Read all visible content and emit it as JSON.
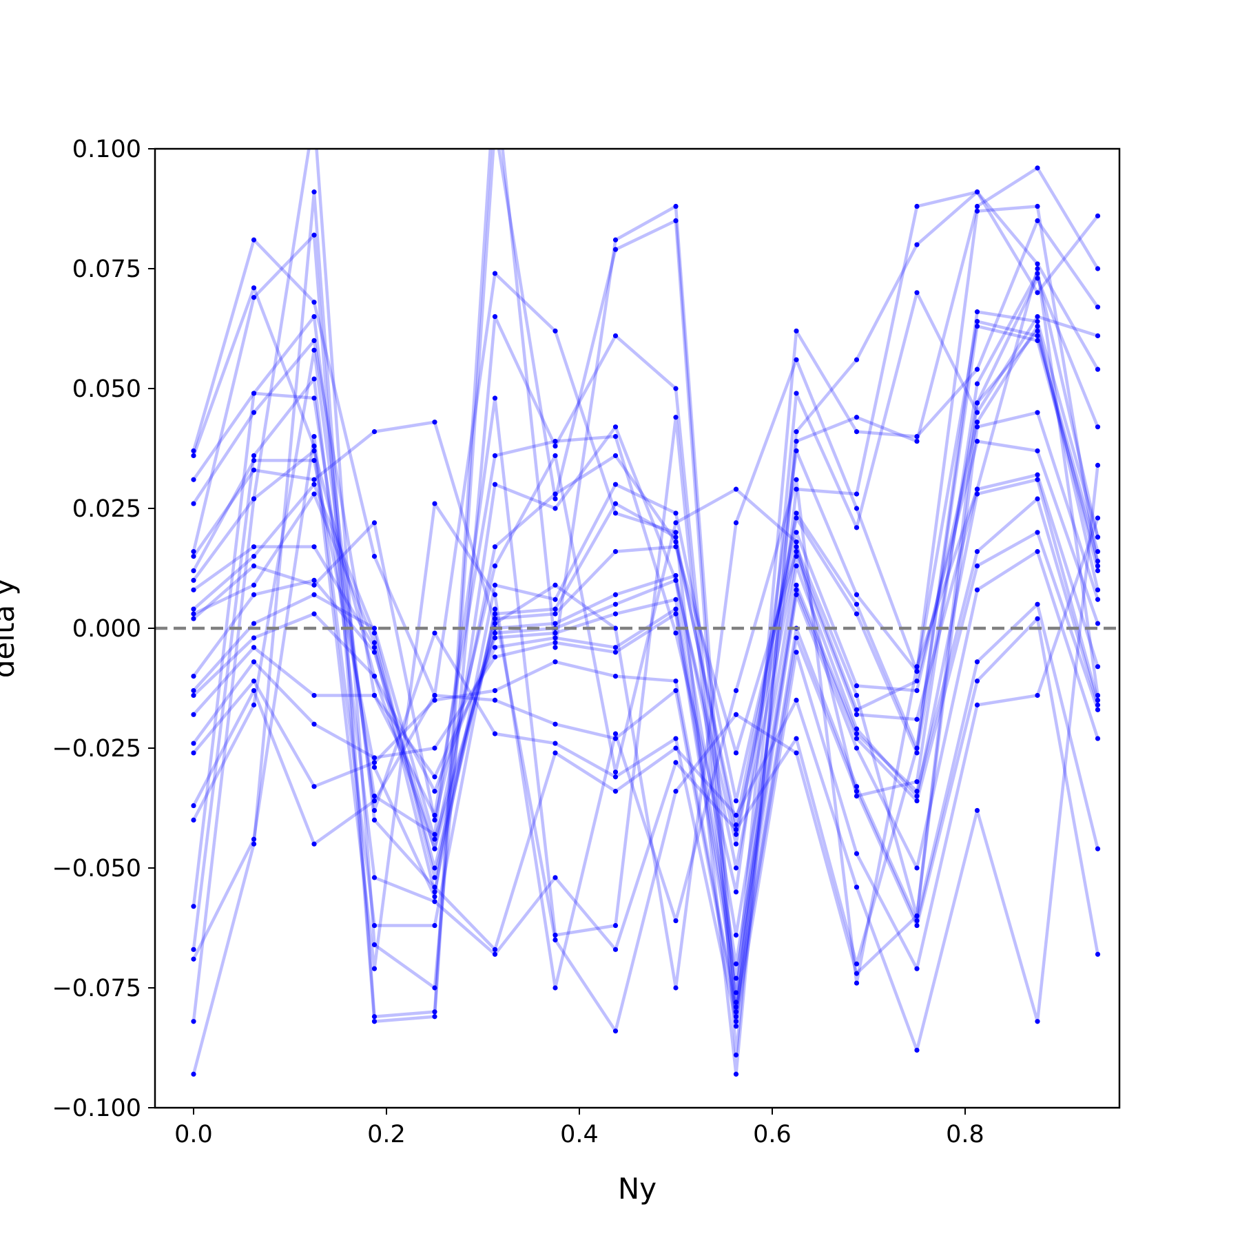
{
  "chart_data": {
    "type": "line",
    "title": "",
    "xlabel": "Ny",
    "ylabel": "delta y",
    "xlim": [
      -0.04,
      0.96
    ],
    "ylim": [
      -0.1,
      0.1
    ],
    "x_ticks": [
      "0.0",
      "0.2",
      "0.4",
      "0.6",
      "0.8"
    ],
    "y_ticks": [
      "0.100",
      "0.075",
      "0.050",
      "0.025",
      "0.000",
      "−0.025",
      "−0.050",
      "−0.075",
      "−0.100"
    ],
    "grid": false,
    "reference_line": {
      "y": 0.0,
      "style": "dashed",
      "color": "#808080"
    },
    "colors": {
      "line": "#0000ff",
      "marker": "#0000ff",
      "line_alpha": 0.25
    },
    "x": [
      0.0,
      0.0625,
      0.125,
      0.1875,
      0.25,
      0.3125,
      0.375,
      0.4375,
      0.5,
      0.5625,
      0.625,
      0.6875,
      0.75,
      0.8125,
      0.875,
      0.9375
    ],
    "series": [
      {
        "values": [
          0.037,
          0.081,
          0.068,
          0.015,
          -0.014,
          0.074,
          0.062,
          0.024,
          0.02,
          -0.093,
          0.041,
          0.056,
          0.08,
          0.091,
          0.076,
          0.054
        ]
      },
      {
        "values": [
          -0.093,
          -0.045,
          0.091,
          -0.081,
          -0.08,
          0.115,
          -0.004,
          0.081,
          0.088,
          -0.081,
          0.029,
          0.028,
          0.088,
          0.091,
          0.07,
          0.086
        ]
      },
      {
        "values": [
          0.016,
          0.069,
          0.082,
          -0.082,
          -0.081,
          0.105,
          0.027,
          0.079,
          0.085,
          -0.089,
          0.039,
          0.044,
          0.039,
          0.088,
          0.096,
          0.075
        ]
      },
      {
        "values": [
          -0.082,
          0.027,
          0.107,
          -0.066,
          -0.075,
          0.065,
          0.038,
          0.061,
          0.05,
          -0.078,
          0.062,
          0.041,
          0.04,
          0.054,
          0.085,
          0.067
        ]
      },
      {
        "values": [
          0.031,
          0.049,
          0.048,
          -0.035,
          -0.043,
          0.048,
          -0.064,
          -0.062,
          0.044,
          -0.083,
          0.049,
          0.021,
          0.07,
          0.045,
          0.065,
          0.061
        ]
      },
      {
        "values": [
          0.026,
          0.045,
          0.06,
          -0.014,
          -0.039,
          0.036,
          0.039,
          0.04,
          -0.001,
          -0.055,
          0.037,
          0.007,
          -0.009,
          0.064,
          0.061,
          0.016
        ]
      },
      {
        "values": [
          0.012,
          0.035,
          0.035,
          -0.029,
          -0.056,
          0.03,
          0.025,
          0.042,
          0.01,
          -0.045,
          0.024,
          0.005,
          -0.025,
          0.063,
          0.06,
          0.014
        ]
      },
      {
        "values": [
          0.01,
          0.027,
          0.037,
          -0.01,
          -0.046,
          0.017,
          0.028,
          0.036,
          0.018,
          -0.041,
          0.023,
          0.003,
          -0.026,
          0.047,
          0.062,
          0.012
        ]
      },
      {
        "values": [
          0.008,
          0.017,
          0.017,
          -0.004,
          -0.055,
          0.009,
          0.006,
          0.03,
          0.024,
          -0.036,
          0.02,
          -0.012,
          -0.013,
          0.043,
          0.063,
          0.008
        ]
      },
      {
        "values": [
          0.004,
          0.015,
          0.03,
          -0.001,
          -0.052,
          0.003,
          0.004,
          0.026,
          0.019,
          -0.043,
          0.017,
          -0.014,
          -0.06,
          0.042,
          0.045,
          0.006
        ]
      },
      {
        "values": [
          0.003,
          0.009,
          0.028,
          -0.003,
          -0.05,
          0.002,
          0.003,
          0.016,
          0.017,
          -0.026,
          0.016,
          -0.017,
          -0.011,
          0.039,
          0.037,
          0.001
        ]
      },
      {
        "values": [
          -0.01,
          0.007,
          0.01,
          -0.005,
          -0.046,
          0.0,
          0.001,
          0.007,
          0.011,
          -0.05,
          0.015,
          -0.018,
          -0.019,
          0.029,
          0.032,
          -0.008
        ]
      },
      {
        "values": [
          -0.013,
          0.001,
          0.007,
          0.0,
          -0.044,
          -0.001,
          0.0,
          0.005,
          0.01,
          -0.064,
          0.013,
          -0.021,
          -0.035,
          0.028,
          0.031,
          -0.015
        ]
      },
      {
        "values": [
          -0.014,
          -0.002,
          0.003,
          -0.01,
          -0.034,
          -0.002,
          -0.001,
          0.003,
          0.006,
          -0.07,
          0.009,
          -0.022,
          -0.034,
          0.016,
          0.027,
          -0.016
        ]
      },
      {
        "values": [
          -0.018,
          -0.004,
          -0.014,
          -0.014,
          -0.031,
          -0.004,
          -0.002,
          -0.004,
          0.004,
          -0.073,
          0.008,
          -0.023,
          -0.036,
          0.013,
          0.02,
          -0.017
        ]
      },
      {
        "values": [
          -0.024,
          -0.007,
          -0.02,
          -0.027,
          -0.025,
          -0.006,
          -0.003,
          -0.005,
          0.003,
          -0.076,
          0.007,
          -0.025,
          -0.05,
          0.008,
          0.016,
          -0.023
        ]
      },
      {
        "values": [
          -0.026,
          -0.011,
          -0.033,
          -0.028,
          -0.015,
          -0.013,
          -0.007,
          -0.01,
          -0.011,
          -0.079,
          0.0,
          -0.033,
          -0.061,
          -0.007,
          0.005,
          -0.046
        ]
      },
      {
        "values": [
          -0.037,
          -0.013,
          -0.045,
          -0.036,
          -0.014,
          -0.015,
          -0.02,
          -0.023,
          -0.013,
          -0.08,
          -0.002,
          -0.034,
          -0.062,
          -0.011,
          0.002,
          -0.068
        ]
      },
      {
        "values": [
          -0.04,
          -0.016,
          0.058,
          -0.038,
          -0.001,
          -0.022,
          -0.024,
          -0.031,
          -0.023,
          -0.082,
          -0.005,
          -0.047,
          -0.071,
          -0.016,
          -0.014,
          0.023
        ]
      },
      {
        "values": [
          -0.058,
          0.049,
          0.065,
          -0.04,
          -0.054,
          -0.067,
          -0.026,
          -0.034,
          -0.025,
          -0.039,
          -0.015,
          -0.054,
          -0.088,
          -0.038,
          -0.082,
          0.034
        ]
      },
      {
        "values": [
          -0.067,
          0.036,
          0.052,
          -0.052,
          -0.057,
          -0.068,
          -0.052,
          -0.067,
          -0.028,
          -0.042,
          -0.023,
          -0.07,
          -0.025,
          0.066,
          0.064,
          0.019
        ]
      },
      {
        "values": [
          -0.069,
          -0.044,
          0.04,
          -0.062,
          -0.062,
          0.004,
          -0.065,
          -0.084,
          -0.034,
          -0.018,
          -0.026,
          -0.072,
          -0.06,
          0.047,
          0.073,
          0.042
        ]
      },
      {
        "values": [
          0.036,
          0.071,
          0.038,
          -0.071,
          0.026,
          0.007,
          -0.075,
          -0.022,
          -0.061,
          -0.013,
          0.031,
          -0.074,
          -0.008,
          0.029,
          0.075,
          -0.014
        ]
      },
      {
        "values": [
          0.015,
          0.033,
          0.031,
          0.041,
          0.043,
          0.001,
          0.009,
          0.0,
          -0.075,
          0.022,
          0.056,
          0.025,
          -0.009,
          0.087,
          0.088,
          0.013
        ]
      },
      {
        "values": [
          0.002,
          0.013,
          0.009,
          0.022,
          -0.04,
          0.013,
          0.036,
          -0.03,
          0.022,
          0.029,
          0.018,
          -0.035,
          -0.032,
          0.051,
          0.074,
          0.019
        ]
      }
    ]
  }
}
